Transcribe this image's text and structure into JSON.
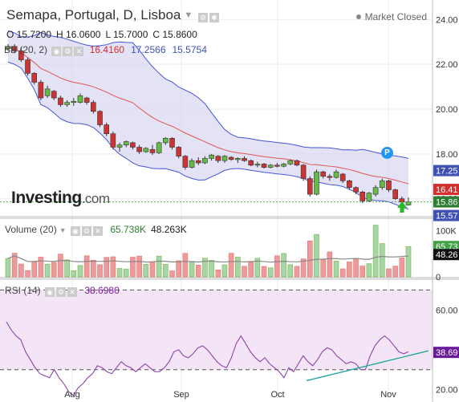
{
  "header": {
    "title": "Semapa, Portugal, D, Lisboa",
    "market_status": "Market Closed",
    "ohlc": {
      "open": "O 15.7200",
      "high": "H 16.0600",
      "low": "L 15.7000",
      "close": "C 15.8600"
    }
  },
  "bb_legend": {
    "label": "BB (20, 2)",
    "mid": "16.4160",
    "upper": "17.2566",
    "lower": "15.5754"
  },
  "volume_legend": {
    "label": "Volume (20)",
    "value": "65.738K",
    "ma": "48.263K"
  },
  "rsi_legend": {
    "label": "RSI (14)",
    "value": "38.6980"
  },
  "logo": {
    "main": "Investing",
    "suffix": ".com"
  },
  "marker": "P",
  "colors": {
    "up": "#66bb44",
    "down": "#cc3333",
    "band_fill": "#ccccec",
    "band_line": "#4455dd",
    "mid_line": "#e05555",
    "rsi_line": "#8e44ad",
    "rsi_fill": "#f3e5f5"
  },
  "chart_data": [
    {
      "type": "candlestick",
      "x_ticks": [
        "Aug",
        "Sep",
        "Oct",
        "Nov"
      ],
      "y_ticks": [
        16,
        18,
        20,
        22,
        24
      ],
      "ylim": [
        15.2,
        24.8
      ],
      "price_labels": [
        "17.25",
        "16.41",
        "15.86",
        "15.57"
      ],
      "candles": [
        [
          22.7,
          22.9,
          22.6,
          22.8
        ],
        [
          22.8,
          22.9,
          22.5,
          22.6
        ],
        [
          22.6,
          22.75,
          22.1,
          22.2
        ],
        [
          22.2,
          22.3,
          21.5,
          21.6
        ],
        [
          21.6,
          21.65,
          21.1,
          21.2
        ],
        [
          21.2,
          21.3,
          20.4,
          20.5
        ],
        [
          20.6,
          21.05,
          20.5,
          20.9
        ],
        [
          20.8,
          20.85,
          20.4,
          20.5
        ],
        [
          20.5,
          20.6,
          20.1,
          20.2
        ],
        [
          20.2,
          20.4,
          20.1,
          20.3
        ],
        [
          20.3,
          20.5,
          20.15,
          20.35
        ],
        [
          20.3,
          20.7,
          20.25,
          20.6
        ],
        [
          20.5,
          20.55,
          20.2,
          20.3
        ],
        [
          20.3,
          20.4,
          19.8,
          19.9
        ],
        [
          19.9,
          19.95,
          19.2,
          19.3
        ],
        [
          19.3,
          19.4,
          18.8,
          18.9
        ],
        [
          18.9,
          19.0,
          18.2,
          18.3
        ],
        [
          18.3,
          18.5,
          18.1,
          18.4
        ],
        [
          18.4,
          18.6,
          18.3,
          18.55
        ],
        [
          18.5,
          18.55,
          18.2,
          18.3
        ],
        [
          18.3,
          18.4,
          18.0,
          18.1
        ],
        [
          18.1,
          18.3,
          18.05,
          18.25
        ],
        [
          18.2,
          18.4,
          17.95,
          18.05
        ],
        [
          18.05,
          18.55,
          18.0,
          18.5
        ],
        [
          18.5,
          18.75,
          18.4,
          18.7
        ],
        [
          18.7,
          18.75,
          18.2,
          18.3
        ],
        [
          18.3,
          18.35,
          17.8,
          17.9
        ],
        [
          17.9,
          17.95,
          17.3,
          17.4
        ],
        [
          17.4,
          17.8,
          17.35,
          17.7
        ],
        [
          17.7,
          17.85,
          17.5,
          17.6
        ],
        [
          17.6,
          17.9,
          17.55,
          17.8
        ],
        [
          17.8,
          18.0,
          17.7,
          17.95
        ],
        [
          17.9,
          17.95,
          17.6,
          17.7
        ],
        [
          17.7,
          17.95,
          17.6,
          17.9
        ],
        [
          17.85,
          17.9,
          17.7,
          17.75
        ],
        [
          17.75,
          17.85,
          17.6,
          17.8
        ],
        [
          17.8,
          17.9,
          17.65,
          17.7
        ],
        [
          17.7,
          17.75,
          17.45,
          17.5
        ],
        [
          17.5,
          17.65,
          17.4,
          17.55
        ],
        [
          17.55,
          17.6,
          17.35,
          17.4
        ],
        [
          17.4,
          17.55,
          17.35,
          17.5
        ],
        [
          17.5,
          17.6,
          17.4,
          17.45
        ],
        [
          17.45,
          17.6,
          17.4,
          17.55
        ],
        [
          17.55,
          17.75,
          17.5,
          17.7
        ],
        [
          17.7,
          17.75,
          17.45,
          17.5
        ],
        [
          17.5,
          17.55,
          16.8,
          16.9
        ],
        [
          16.9,
          17.0,
          16.1,
          16.2
        ],
        [
          16.2,
          17.3,
          16.15,
          17.2
        ],
        [
          17.2,
          17.25,
          16.9,
          17.0
        ],
        [
          17.0,
          17.1,
          16.8,
          16.95
        ],
        [
          16.95,
          17.3,
          16.9,
          17.2
        ],
        [
          17.1,
          17.15,
          16.7,
          16.8
        ],
        [
          16.8,
          16.85,
          16.4,
          16.5
        ],
        [
          16.5,
          16.55,
          16.2,
          16.3
        ],
        [
          16.3,
          16.35,
          15.8,
          15.9
        ],
        [
          15.9,
          16.3,
          15.85,
          16.25
        ],
        [
          16.2,
          16.6,
          16.1,
          16.5
        ],
        [
          16.5,
          16.9,
          16.4,
          16.8
        ],
        [
          16.8,
          16.85,
          16.3,
          16.4
        ],
        [
          16.4,
          16.45,
          15.95,
          16.0
        ],
        [
          16.0,
          16.1,
          15.75,
          15.85
        ],
        [
          15.72,
          16.06,
          15.7,
          15.86
        ]
      ]
    },
    {
      "type": "bar",
      "title": "Volume (20)",
      "y_ticks": [
        "0",
        "50K",
        "100K"
      ],
      "ylim": [
        0,
        120000
      ],
      "last_value": "65.73",
      "ma_label": "48.26"
    },
    {
      "type": "line",
      "title": "RSI (14)",
      "y_ticks": [
        20,
        40,
        60
      ],
      "ylim": [
        15,
        75
      ],
      "levels": [
        30,
        70
      ],
      "last_value": "38.69",
      "values": [
        54,
        50,
        47,
        45,
        39,
        35,
        31,
        28,
        27,
        26,
        30,
        26,
        23,
        19,
        17,
        21,
        23,
        26,
        28,
        32,
        31,
        29,
        28,
        31,
        34,
        32,
        31,
        29,
        31,
        33,
        31,
        29,
        29,
        31,
        34,
        39,
        40,
        37,
        36,
        38,
        41,
        42,
        40,
        37,
        34,
        32,
        31,
        36,
        43,
        47,
        43,
        39,
        36,
        34,
        36,
        33,
        31,
        29,
        26,
        31,
        29,
        33,
        37,
        34,
        32,
        35,
        39,
        41,
        40,
        37,
        35,
        33,
        34,
        33,
        30,
        30,
        37,
        42,
        45,
        47,
        45,
        42,
        39,
        38,
        39
      ]
    }
  ]
}
